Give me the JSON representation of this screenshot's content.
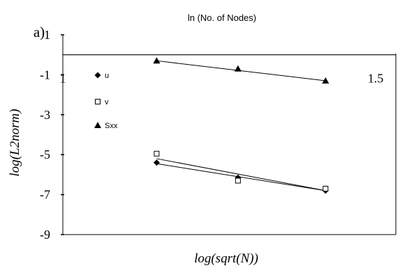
{
  "chart_data": {
    "type": "scatter",
    "panel_label": "a)",
    "top_caption": "ln (No. of Nodes)",
    "xlabel": "log(sqrt(N))",
    "ylabel": "log(L2norm)",
    "xlim": [
      1,
      1.5
    ],
    "ylim": [
      -9,
      1
    ],
    "x_ticks": [
      "1",
      "1.5"
    ],
    "y_ticks": [
      "1",
      "-1",
      "-3",
      "-5",
      "-7",
      "-9"
    ],
    "grid": false,
    "legend_position": "left",
    "series": [
      {
        "name": "u",
        "marker": "diamond",
        "color": "#000000",
        "points": [
          [
            1.15,
            -5.4
          ],
          [
            1.28,
            -6.15
          ],
          [
            1.42,
            -6.8
          ]
        ],
        "trendline": [
          [
            1.15,
            -5.45
          ],
          [
            1.42,
            -6.8
          ]
        ]
      },
      {
        "name": "v",
        "marker": "open-square",
        "color": "#000000",
        "points": [
          [
            1.15,
            -4.95
          ],
          [
            1.28,
            -6.3
          ],
          [
            1.42,
            -6.7
          ]
        ],
        "trendline": [
          [
            1.15,
            -5.2
          ],
          [
            1.42,
            -6.8
          ]
        ]
      },
      {
        "name": "Sxx",
        "marker": "triangle",
        "color": "#000000",
        "points": [
          [
            1.15,
            -0.3
          ],
          [
            1.28,
            -0.7
          ],
          [
            1.42,
            -1.3
          ]
        ],
        "trendline": [
          [
            1.15,
            -0.3
          ],
          [
            1.42,
            -1.3
          ]
        ]
      }
    ]
  }
}
